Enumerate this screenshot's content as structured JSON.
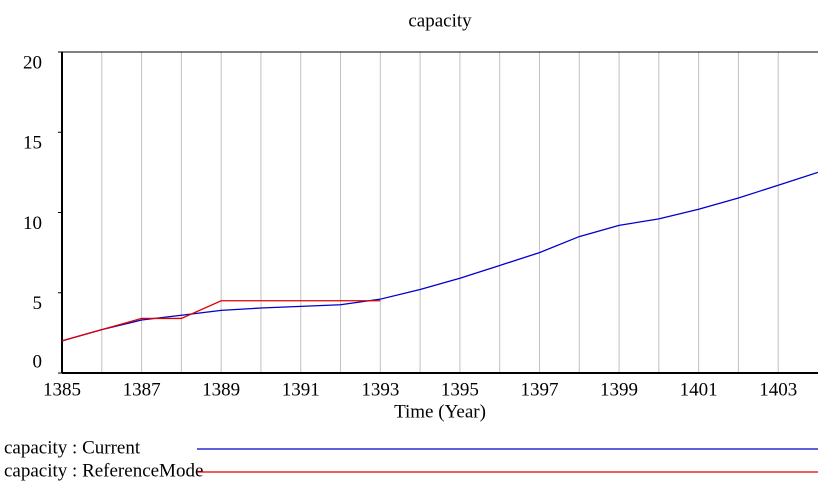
{
  "chart_data": {
    "type": "line",
    "title": "capacity",
    "x_label": "Time (Year)",
    "x": [
      1385,
      1386,
      1387,
      1388,
      1389,
      1390,
      1391,
      1392,
      1393,
      1394,
      1395,
      1396,
      1397,
      1398,
      1399,
      1400,
      1401,
      1402,
      1403,
      1404
    ],
    "series": [
      {
        "name": "capacity : Current",
        "color": "#0000cc",
        "values": [
          2,
          2.7,
          3.3,
          3.6,
          3.9,
          4.05,
          4.15,
          4.25,
          4.6,
          5.2,
          5.9,
          6.7,
          7.5,
          8.5,
          9.2,
          9.6,
          10.2,
          10.9,
          11.7,
          12.5
        ]
      },
      {
        "name": "capacity : ReferenceMode",
        "color": "#dd0000",
        "values": [
          2,
          2.7,
          3.4,
          3.4,
          4.5,
          4.5,
          4.5,
          4.5,
          4.5,
          null,
          null,
          null,
          null,
          null,
          null,
          null,
          null,
          null,
          null,
          null
        ]
      }
    ],
    "xlim": [
      1385,
      1404
    ],
    "xticks": [
      1385,
      1387,
      1389,
      1391,
      1393,
      1395,
      1397,
      1399,
      1401,
      1403
    ],
    "ylim": [
      0,
      20
    ],
    "yticks": [
      0,
      5,
      10,
      15,
      20
    ],
    "grid": true
  }
}
